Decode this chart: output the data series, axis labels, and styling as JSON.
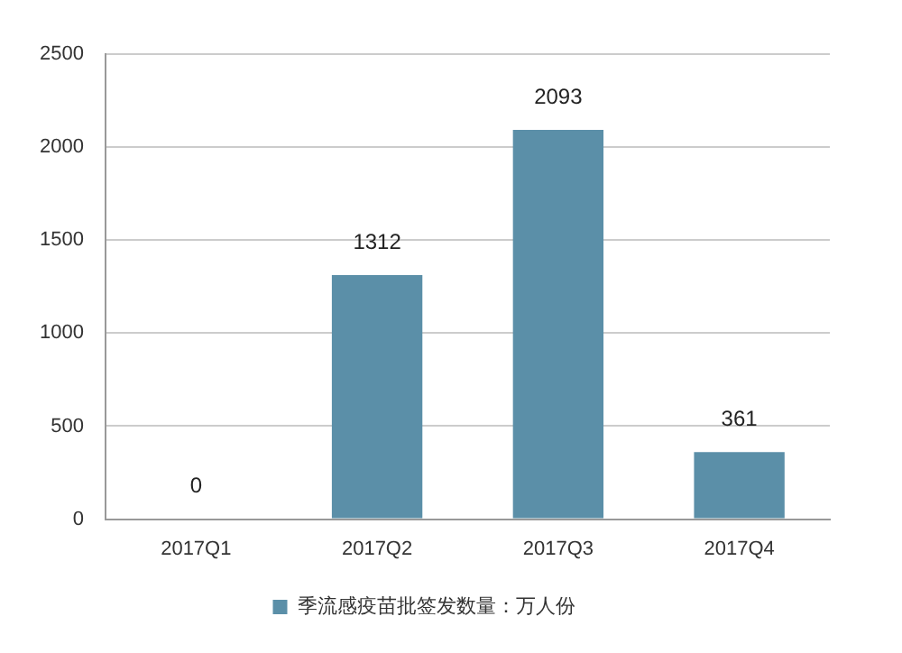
{
  "chart_data": {
    "type": "bar",
    "categories": [
      "2017Q1",
      "2017Q2",
      "2017Q3",
      "2017Q4"
    ],
    "series": [
      {
        "name": "季流感疫苗批签发数量：万人份",
        "color": "#5b8fa8",
        "values": [
          0,
          1312,
          2093,
          361
        ]
      }
    ],
    "ylim": [
      0,
      2500
    ],
    "yticks": [
      0,
      500,
      1000,
      1500,
      2000,
      2500
    ],
    "grid": "y",
    "legend": "bottom",
    "data_labels": true
  }
}
